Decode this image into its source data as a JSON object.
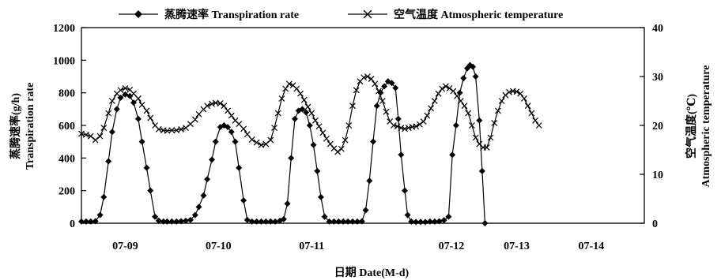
{
  "chart_data": {
    "type": "line",
    "title": "",
    "xlabel": "日期 Date(M-d)",
    "ylabel_left_zh": "蒸腾速率(g/h)",
    "ylabel_left_en": "Transpiration rate",
    "ylabel_right_zh": "空气温度(℃)",
    "ylabel_right_en": "Atmospheric temperature",
    "ylim_left": [
      0,
      1200
    ],
    "yticks_left": [
      "0",
      "200",
      "400",
      "600",
      "800",
      "1000",
      "1200"
    ],
    "ylim_right": [
      0,
      40
    ],
    "yticks_right": [
      "0",
      "10",
      "20",
      "30",
      "40"
    ],
    "grid": false,
    "legend_position": "top",
    "x_range_days": [
      8.53,
      14.57
    ],
    "x_tick_labels": [
      {
        "label": "07-09",
        "x": 9.0
      },
      {
        "label": "07-10",
        "x": 10.0
      },
      {
        "label": "07-11",
        "x": 11.0
      },
      {
        "label": "07-12",
        "x": 12.5
      },
      {
        "label": "07-13",
        "x": 13.2
      },
      {
        "label": "07-14",
        "x": 14.0
      }
    ],
    "series": [
      {
        "name": "蒸腾速率 Transpiration rate",
        "axis": "left",
        "marker": "diamond",
        "color": "#000000",
        "points": [
          [
            8.53,
            10
          ],
          [
            8.58,
            10
          ],
          [
            8.63,
            10
          ],
          [
            8.68,
            12
          ],
          [
            8.73,
            50
          ],
          [
            8.77,
            160
          ],
          [
            8.82,
            380
          ],
          [
            8.86,
            560
          ],
          [
            8.91,
            700
          ],
          [
            8.95,
            770
          ],
          [
            9.0,
            790
          ],
          [
            9.05,
            780
          ],
          [
            9.09,
            740
          ],
          [
            9.14,
            640
          ],
          [
            9.18,
            500
          ],
          [
            9.23,
            340
          ],
          [
            9.27,
            200
          ],
          [
            9.32,
            40
          ],
          [
            9.36,
            15
          ],
          [
            9.41,
            10
          ],
          [
            9.45,
            10
          ],
          [
            9.5,
            10
          ],
          [
            9.55,
            10
          ],
          [
            9.6,
            12
          ],
          [
            9.65,
            15
          ],
          [
            9.7,
            20
          ],
          [
            9.75,
            50
          ],
          [
            9.79,
            100
          ],
          [
            9.84,
            170
          ],
          [
            9.88,
            270
          ],
          [
            9.93,
            390
          ],
          [
            9.97,
            500
          ],
          [
            10.02,
            590
          ],
          [
            10.06,
            600
          ],
          [
            10.1,
            590
          ],
          [
            10.14,
            560
          ],
          [
            10.18,
            500
          ],
          [
            10.22,
            340
          ],
          [
            10.27,
            140
          ],
          [
            10.31,
            20
          ],
          [
            10.36,
            10
          ],
          [
            10.41,
            10
          ],
          [
            10.46,
            10
          ],
          [
            10.51,
            10
          ],
          [
            10.56,
            10
          ],
          [
            10.61,
            10
          ],
          [
            10.66,
            15
          ],
          [
            10.7,
            25
          ],
          [
            10.74,
            120
          ],
          [
            10.78,
            400
          ],
          [
            10.82,
            640
          ],
          [
            10.86,
            690
          ],
          [
            10.9,
            700
          ],
          [
            10.94,
            680
          ],
          [
            10.98,
            600
          ],
          [
            11.02,
            480
          ],
          [
            11.06,
            320
          ],
          [
            11.1,
            160
          ],
          [
            11.14,
            40
          ],
          [
            11.19,
            10
          ],
          [
            11.24,
            10
          ],
          [
            11.29,
            10
          ],
          [
            11.34,
            10
          ],
          [
            11.39,
            10
          ],
          [
            11.44,
            10
          ],
          [
            11.49,
            10
          ],
          [
            11.54,
            12
          ],
          [
            11.58,
            80
          ],
          [
            11.62,
            260
          ],
          [
            11.66,
            500
          ],
          [
            11.7,
            720
          ],
          [
            11.74,
            800
          ],
          [
            11.78,
            840
          ],
          [
            11.82,
            870
          ],
          [
            11.86,
            860
          ],
          [
            11.9,
            830
          ],
          [
            11.93,
            640
          ],
          [
            11.96,
            420
          ],
          [
            12.0,
            200
          ],
          [
            12.03,
            50
          ],
          [
            12.07,
            10
          ],
          [
            12.12,
            8
          ],
          [
            12.17,
            8
          ],
          [
            12.22,
            8
          ],
          [
            12.27,
            10
          ],
          [
            12.32,
            10
          ],
          [
            12.37,
            12
          ],
          [
            12.42,
            18
          ],
          [
            12.47,
            40
          ],
          [
            12.51,
            420
          ],
          [
            12.55,
            600
          ],
          [
            12.59,
            800
          ],
          [
            12.63,
            890
          ],
          [
            12.67,
            950
          ],
          [
            12.7,
            970
          ],
          [
            12.73,
            960
          ],
          [
            12.76,
            900
          ],
          [
            12.8,
            630
          ],
          [
            12.83,
            320
          ],
          [
            12.86,
            0
          ]
        ]
      },
      {
        "name": "空气温度 Atmospheric temperature",
        "axis": "right",
        "marker": "x",
        "color": "#000000",
        "points": [
          [
            8.53,
            18.3
          ],
          [
            8.58,
            18.1
          ],
          [
            8.63,
            17.8
          ],
          [
            8.68,
            17.0
          ],
          [
            8.73,
            17.8
          ],
          [
            8.77,
            19.5
          ],
          [
            8.82,
            22.5
          ],
          [
            8.86,
            25.0
          ],
          [
            8.91,
            26.5
          ],
          [
            8.95,
            27.2
          ],
          [
            9.0,
            27.6
          ],
          [
            9.05,
            27.3
          ],
          [
            9.09,
            26.5
          ],
          [
            9.14,
            25.5
          ],
          [
            9.18,
            24.2
          ],
          [
            9.23,
            23.0
          ],
          [
            9.27,
            21.5
          ],
          [
            9.32,
            20.0
          ],
          [
            9.36,
            19.2
          ],
          [
            9.41,
            19.0
          ],
          [
            9.45,
            18.9
          ],
          [
            9.5,
            19.0
          ],
          [
            9.55,
            19.0
          ],
          [
            9.6,
            19.2
          ],
          [
            9.65,
            19.5
          ],
          [
            9.7,
            20.3
          ],
          [
            9.75,
            21.2
          ],
          [
            9.79,
            22.3
          ],
          [
            9.84,
            23.3
          ],
          [
            9.88,
            24.0
          ],
          [
            9.93,
            24.4
          ],
          [
            9.97,
            24.6
          ],
          [
            10.02,
            24.5
          ],
          [
            10.06,
            24.0
          ],
          [
            10.1,
            23.0
          ],
          [
            10.14,
            22.0
          ],
          [
            10.18,
            21.0
          ],
          [
            10.22,
            20.3
          ],
          [
            10.27,
            19.3
          ],
          [
            10.31,
            18.2
          ],
          [
            10.36,
            17.1
          ],
          [
            10.41,
            16.5
          ],
          [
            10.46,
            16.0
          ],
          [
            10.51,
            16.2
          ],
          [
            10.56,
            17.0
          ],
          [
            10.6,
            19.5
          ],
          [
            10.64,
            22.5
          ],
          [
            10.68,
            25.5
          ],
          [
            10.72,
            27.5
          ],
          [
            10.76,
            28.5
          ],
          [
            10.8,
            28.2
          ],
          [
            10.84,
            27.5
          ],
          [
            10.88,
            26.5
          ],
          [
            10.92,
            25.2
          ],
          [
            10.96,
            23.8
          ],
          [
            11.0,
            22.5
          ],
          [
            11.04,
            21.0
          ],
          [
            11.08,
            19.8
          ],
          [
            11.12,
            18.5
          ],
          [
            11.16,
            17.3
          ],
          [
            11.2,
            16.2
          ],
          [
            11.24,
            15.3
          ],
          [
            11.28,
            14.6
          ],
          [
            11.32,
            15.2
          ],
          [
            11.36,
            17.0
          ],
          [
            11.4,
            20.0
          ],
          [
            11.44,
            24.0
          ],
          [
            11.48,
            27.2
          ],
          [
            11.52,
            29.0
          ],
          [
            11.56,
            29.8
          ],
          [
            11.6,
            30.0
          ],
          [
            11.64,
            29.5
          ],
          [
            11.68,
            28.5
          ],
          [
            11.72,
            27.0
          ],
          [
            11.76,
            25.0
          ],
          [
            11.8,
            22.8
          ],
          [
            11.84,
            20.8
          ],
          [
            11.88,
            20.0
          ],
          [
            11.92,
            19.8
          ],
          [
            11.96,
            19.5
          ],
          [
            12.0,
            19.3
          ],
          [
            12.04,
            19.5
          ],
          [
            12.08,
            19.7
          ],
          [
            12.12,
            19.8
          ],
          [
            12.16,
            20.2
          ],
          [
            12.2,
            20.8
          ],
          [
            12.24,
            22.0
          ],
          [
            12.28,
            23.5
          ],
          [
            12.32,
            25.0
          ],
          [
            12.36,
            26.5
          ],
          [
            12.4,
            27.5
          ],
          [
            12.44,
            28.0
          ],
          [
            12.48,
            27.6
          ],
          [
            12.52,
            27.0
          ],
          [
            12.56,
            26.0
          ],
          [
            12.6,
            25.0
          ],
          [
            12.64,
            24.0
          ],
          [
            12.68,
            22.5
          ],
          [
            12.72,
            20.0
          ],
          [
            12.76,
            17.5
          ],
          [
            12.8,
            16.2
          ],
          [
            12.84,
            15.5
          ],
          [
            12.88,
            15.5
          ],
          [
            12.92,
            17.5
          ],
          [
            12.96,
            20.5
          ],
          [
            13.0,
            23.0
          ],
          [
            13.04,
            25.0
          ],
          [
            13.08,
            26.2
          ],
          [
            13.12,
            26.8
          ],
          [
            13.16,
            27.0
          ],
          [
            13.2,
            26.9
          ],
          [
            13.24,
            26.5
          ],
          [
            13.28,
            25.5
          ],
          [
            13.32,
            24.0
          ],
          [
            13.36,
            22.5
          ],
          [
            13.4,
            21.0
          ],
          [
            13.44,
            20.0
          ]
        ]
      }
    ]
  },
  "legend": [
    {
      "label": "蒸腾速率 Transpiration rate",
      "marker": "diamond"
    },
    {
      "label": "空气温度 Atmospheric temperature",
      "marker": "x"
    }
  ]
}
